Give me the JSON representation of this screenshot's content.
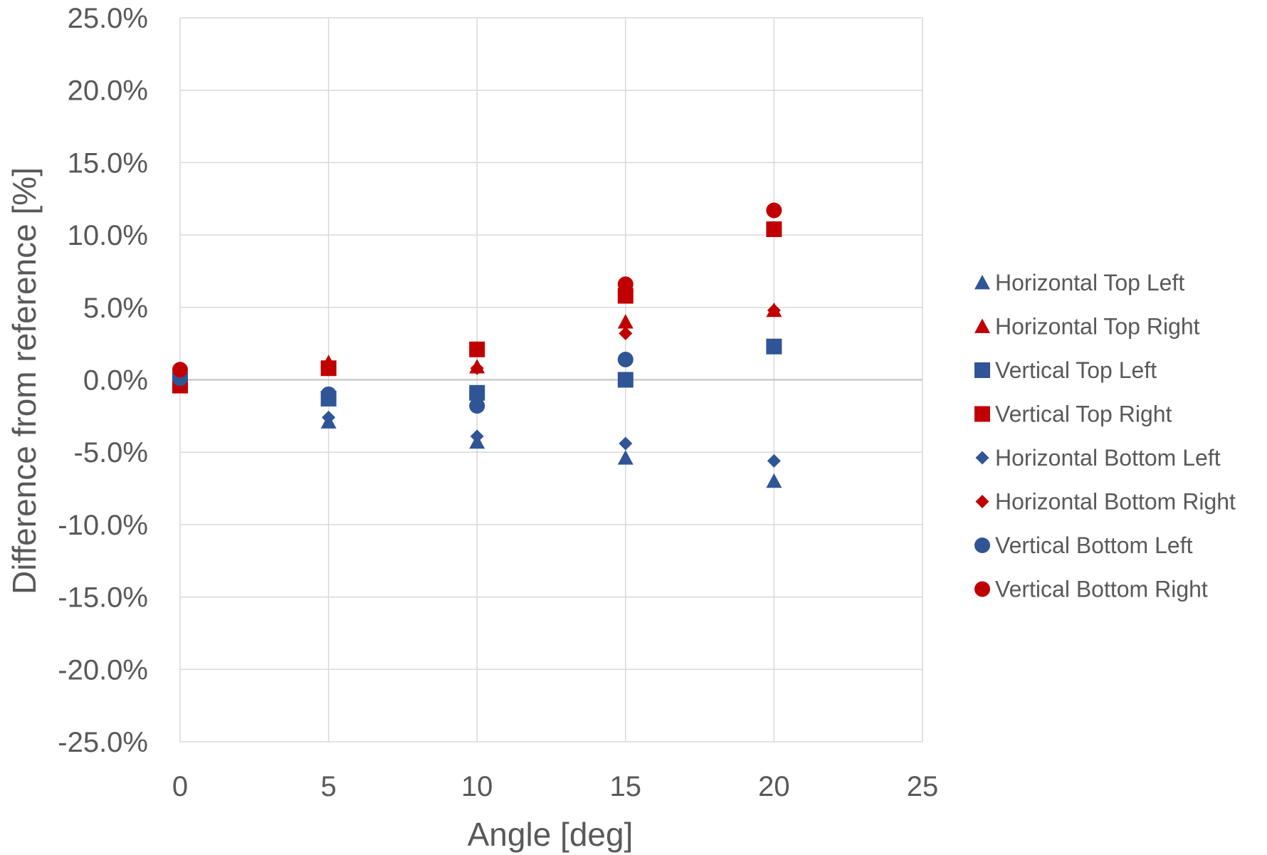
{
  "chart_data": {
    "type": "scatter",
    "title": "",
    "xlabel": "Angle [deg]",
    "ylabel": "Difference from reference [%]",
    "xlim": [
      0,
      25
    ],
    "ylim": [
      -25,
      25
    ],
    "x_ticks": [
      0,
      5,
      10,
      15,
      20,
      25
    ],
    "y_ticks": [
      -25,
      -20,
      -15,
      -10,
      -5,
      0,
      5,
      10,
      15,
      20,
      25
    ],
    "x_tick_labels": [
      "0",
      "5",
      "10",
      "15",
      "20",
      "25"
    ],
    "y_tick_labels": [
      "-25.0%",
      "-20.0%",
      "-15.0%",
      "-10.0%",
      "-5.0%",
      "0.0%",
      "5.0%",
      "10.0%",
      "15.0%",
      "20.0%",
      "25.0%"
    ],
    "grid": true,
    "legend_position": "right",
    "colors": {
      "blue": "#2F5597",
      "red": "#C00000",
      "grid": "#D9D9D9",
      "zero_line": "#BFBFBF",
      "text": "#595959"
    },
    "series": [
      {
        "name": "Horizontal Top Left",
        "marker": "triangle",
        "color": "#2F5597",
        "x": [
          0,
          5,
          10,
          15,
          20
        ],
        "y": [
          0.1,
          -2.9,
          -4.3,
          -5.4,
          -7.0
        ]
      },
      {
        "name": "Horizontal Top Right",
        "marker": "triangle",
        "color": "#C00000",
        "x": [
          0,
          5,
          10,
          15,
          20
        ],
        "y": [
          0.3,
          1.2,
          0.9,
          4.0,
          4.8
        ]
      },
      {
        "name": "Vertical Top Left",
        "marker": "square",
        "color": "#2F5597",
        "x": [
          0,
          5,
          10,
          15,
          20
        ],
        "y": [
          0.0,
          -1.3,
          -0.9,
          0.0,
          2.3
        ]
      },
      {
        "name": "Vertical Top Right",
        "marker": "square",
        "color": "#C00000",
        "x": [
          0,
          5,
          10,
          15,
          20
        ],
        "y": [
          -0.4,
          0.8,
          2.1,
          5.8,
          10.4
        ]
      },
      {
        "name": "Horizontal Bottom Left",
        "marker": "diamond",
        "color": "#2F5597",
        "x": [
          0,
          5,
          10,
          15,
          20
        ],
        "y": [
          0.1,
          -2.6,
          -3.9,
          -4.4,
          -5.6
        ]
      },
      {
        "name": "Horizontal Bottom Right",
        "marker": "diamond",
        "color": "#C00000",
        "x": [
          0,
          5,
          10,
          15,
          20
        ],
        "y": [
          0.4,
          1.0,
          0.8,
          3.2,
          4.8
        ]
      },
      {
        "name": "Vertical Bottom Left",
        "marker": "circle",
        "color": "#2F5597",
        "x": [
          0,
          5,
          10,
          15,
          20
        ],
        "y": [
          0.1,
          -1.0,
          -1.8,
          1.4,
          2.3
        ]
      },
      {
        "name": "Vertical Bottom Right",
        "marker": "circle",
        "color": "#C00000",
        "x": [
          0,
          5,
          10,
          15,
          20
        ],
        "y": [
          0.7,
          0.8,
          2.1,
          6.6,
          11.7
        ]
      }
    ]
  }
}
